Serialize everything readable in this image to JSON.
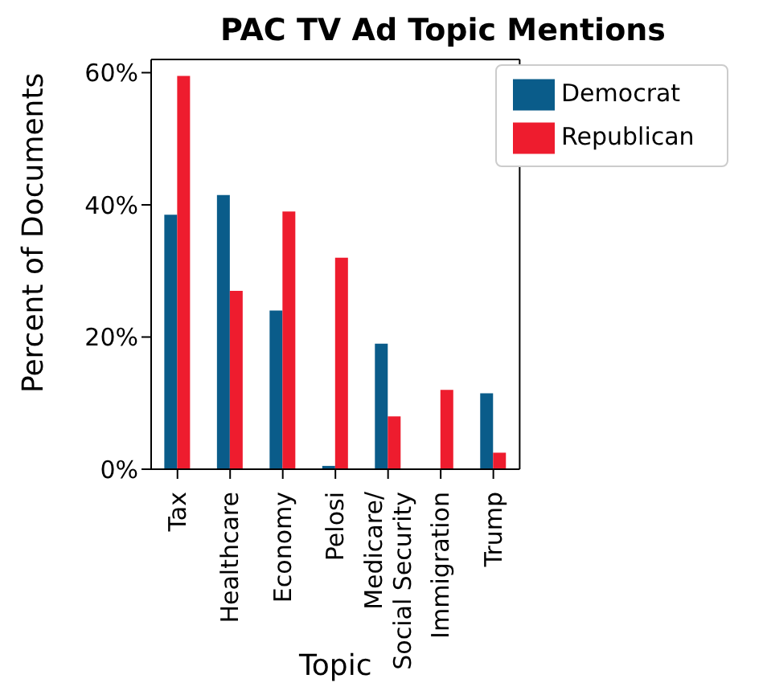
{
  "chart_data": {
    "type": "bar",
    "title": "PAC TV Ad Topic Mentions",
    "xlabel": "Topic",
    "ylabel": "Percent of Documents",
    "categories": [
      "Tax",
      "Healthcare",
      "Economy",
      "Pelosi",
      "Medicare/\nSocial Security",
      "Immigration",
      "Trump"
    ],
    "series": [
      {
        "name": "Democrat",
        "color": "#0a5c8a",
        "values": [
          38.5,
          41.5,
          24,
          0.5,
          19,
          0,
          11.5
        ]
      },
      {
        "name": "Republican",
        "color": "#ee1c2e",
        "values": [
          59.5,
          27,
          39,
          32,
          8,
          12,
          2.5
        ]
      }
    ],
    "ylim": [
      0,
      62
    ],
    "yticks": [
      {
        "value": 0,
        "label": "0%"
      },
      {
        "value": 20,
        "label": "20%"
      },
      {
        "value": 40,
        "label": "40%"
      },
      {
        "value": 60,
        "label": "60%"
      }
    ],
    "grid": false,
    "legend": "top right"
  }
}
